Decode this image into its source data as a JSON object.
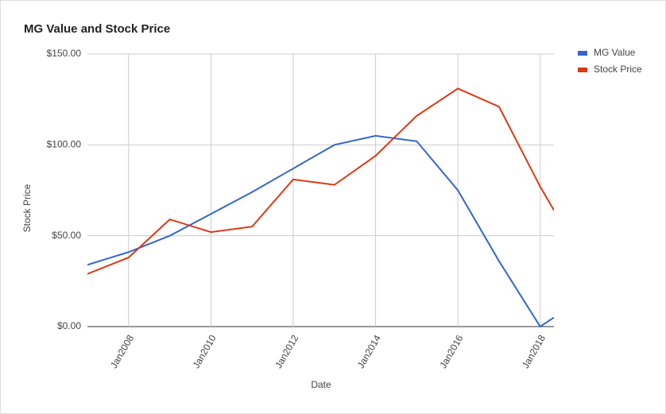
{
  "chart_data": {
    "type": "line",
    "title": "MG Value and Stock Price",
    "x_label": "Date",
    "y_label": "Stock Price",
    "x": [
      "Jan2007",
      "Jan2008",
      "Jan2009",
      "Jan2010",
      "Jan2011",
      "Jan2012",
      "Jan2013",
      "Jan2014",
      "Jan2015",
      "Jan2016",
      "Jan2017",
      "Jan2018",
      "May2018"
    ],
    "series": [
      {
        "name": "MG Value",
        "color": "#3366cc",
        "values": [
          34,
          41,
          50,
          62,
          74,
          87,
          100,
          105,
          102,
          75,
          36,
          0,
          5
        ]
      },
      {
        "name": "Stock Price",
        "color": "#dc3912",
        "values": [
          29,
          38,
          59,
          52,
          55,
          81,
          78,
          94,
          116,
          131,
          121,
          77,
          64
        ]
      }
    ],
    "xlim": [
      "Jan2007",
      "May2018"
    ],
    "xticks": [
      "Jan2008",
      "Jan2010",
      "Jan2012",
      "Jan2014",
      "Jan2016",
      "Jan2018"
    ],
    "ylim": [
      0,
      150
    ],
    "yticks": [
      {
        "value": 0,
        "label": "$0.00"
      },
      {
        "value": 50,
        "label": "$50.00"
      },
      {
        "value": 100,
        "label": "$100.00"
      },
      {
        "value": 150,
        "label": "$150.00"
      }
    ],
    "grid": true,
    "legend": "right"
  }
}
